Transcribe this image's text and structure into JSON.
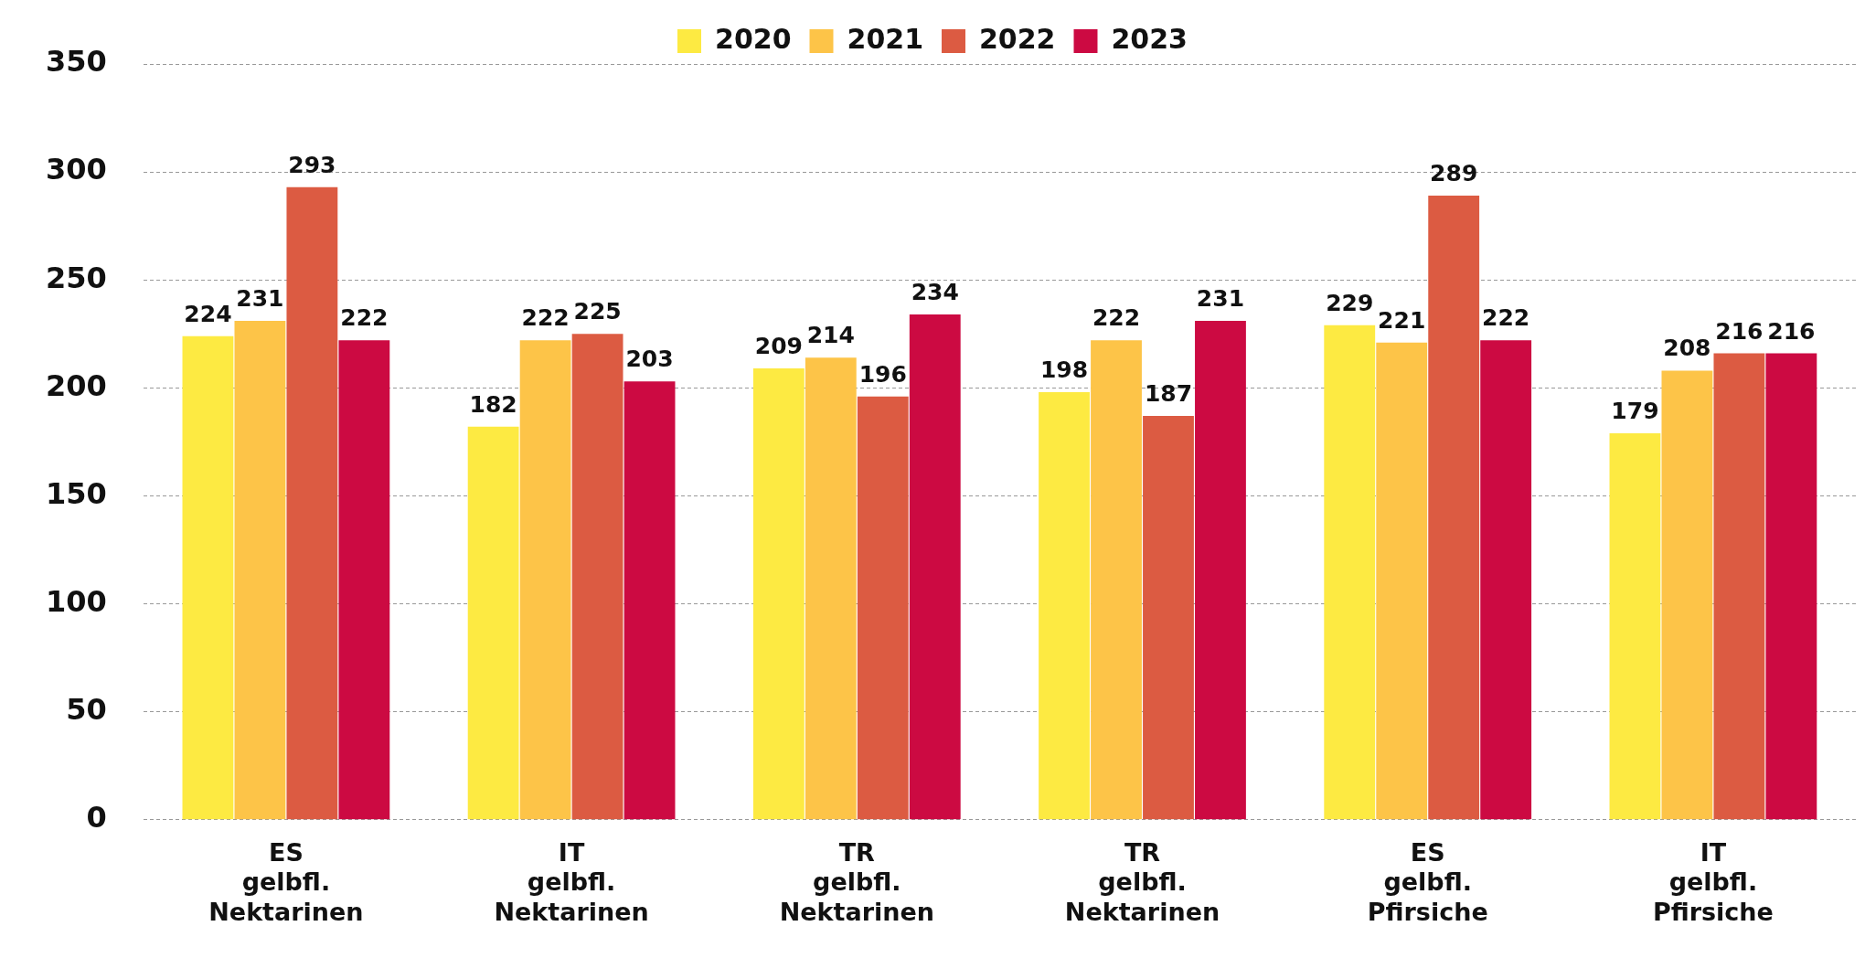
{
  "chart_data": {
    "type": "bar",
    "categories": [
      "ES gelbfl. Nektarinen",
      "IT gelbfl. Nektarinen",
      "TR gelbfl. Nektarinen",
      "TR gelbfl. Nektarinen",
      "ES gelbfl. Pfirsiche",
      "IT gelbfl. Pfirsiche"
    ],
    "series": [
      {
        "name": "2020",
        "color": "#fdea42",
        "values": [
          224,
          182,
          209,
          198,
          229,
          179
        ]
      },
      {
        "name": "2021",
        "color": "#fdc448",
        "values": [
          231,
          222,
          214,
          222,
          221,
          208
        ]
      },
      {
        "name": "2022",
        "color": "#dc5b42",
        "values": [
          293,
          225,
          196,
          187,
          289,
          216
        ]
      },
      {
        "name": "2023",
        "color": "#cc0a42",
        "values": [
          222,
          203,
          234,
          231,
          222,
          216
        ]
      }
    ],
    "ylim": [
      0,
      350
    ],
    "yticks": [
      0,
      50,
      100,
      150,
      200,
      250,
      300,
      350
    ],
    "grid": "y",
    "legend": "top",
    "data_labels": true
  }
}
